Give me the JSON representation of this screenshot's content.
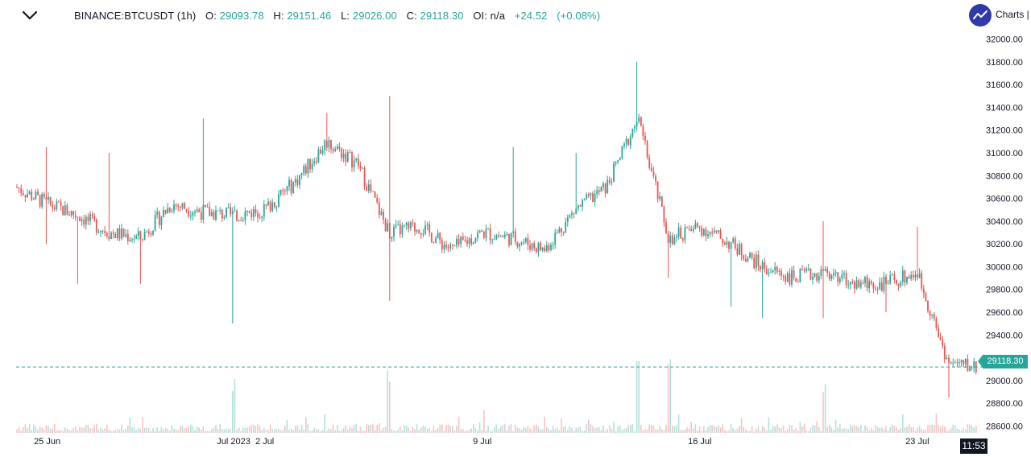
{
  "header": {
    "symbol": "BINANCE:BTCUSDT (1h)",
    "o_label": "O:",
    "o_value": "29093.78",
    "h_label": "H:",
    "h_value": "29151.46",
    "l_label": "L:",
    "l_value": "29026.00",
    "c_label": "C:",
    "c_value": "29118.30",
    "oi_label": "OI:",
    "oi_value": "n/a",
    "change": "+24.52",
    "change_pct": "(+0.08%)",
    "brand": "Charts |",
    "collapse_icon": "chevron-down-icon",
    "logo_icon": "trend-line-logo-icon"
  },
  "colors": {
    "up": "#26a69a",
    "down": "#ef5350",
    "text": "#131722",
    "badge": "#131722",
    "logo": "#2f3aa8"
  },
  "chart_data": {
    "type": "candlestick",
    "symbol": "BINANCE:BTCUSDT",
    "interval": "1h",
    "last_price": 29118.3,
    "last_price_label": "29118.30",
    "time_label": "11:53",
    "ylim": [
      28540,
      32060
    ],
    "y_ticks": [
      {
        "value": 28600,
        "label": "28600.00"
      },
      {
        "value": 28800,
        "label": "28800.00"
      },
      {
        "value": 29000,
        "label": "29000.00"
      },
      {
        "value": 29200,
        "label": "29200.00"
      },
      {
        "value": 29400,
        "label": "29400.00"
      },
      {
        "value": 29600,
        "label": "29600.00"
      },
      {
        "value": 29800,
        "label": "29800.00"
      },
      {
        "value": 30000,
        "label": "30000.00"
      },
      {
        "value": 30200,
        "label": "30200.00"
      },
      {
        "value": 30400,
        "label": "30400.00"
      },
      {
        "value": 30600,
        "label": "30600.00"
      },
      {
        "value": 30800,
        "label": "30800.00"
      },
      {
        "value": 31000,
        "label": "31000.00"
      },
      {
        "value": 31200,
        "label": "31200.00"
      },
      {
        "value": 31400,
        "label": "31400.00"
      },
      {
        "value": 31600,
        "label": "31600.00"
      },
      {
        "value": 31800,
        "label": "31800.00"
      },
      {
        "value": 32000,
        "label": "32000.00"
      }
    ],
    "x_labels": [
      "25 Jun",
      "Jul 2023",
      "2 Jul",
      "9 Jul",
      "16 Jul",
      "23 Jul"
    ],
    "x_range": [
      "2023-06-24",
      "2023-07-25"
    ],
    "x_label_dates": [
      "2023-06-25",
      "2023-07-01",
      "2023-07-02",
      "2023-07-09",
      "2023-07-16",
      "2023-07-23"
    ],
    "path": [
      {
        "date": "2023-06-24",
        "close": 30700
      },
      {
        "date": "2023-06-25",
        "close": 30550
      },
      {
        "date": "2023-06-26",
        "close": 30450
      },
      {
        "date": "2023-06-27",
        "close": 30300
      },
      {
        "date": "2023-06-28",
        "close": 30250
      },
      {
        "date": "2023-06-29",
        "close": 30550
      },
      {
        "date": "2023-06-30",
        "close": 30480
      },
      {
        "date": "2023-07-01",
        "close": 30450
      },
      {
        "date": "2023-07-02",
        "close": 30500
      },
      {
        "date": "2023-07-03",
        "close": 30750
      },
      {
        "date": "2023-07-04",
        "close": 31100
      },
      {
        "date": "2023-07-05",
        "close": 30900
      },
      {
        "date": "2023-07-06",
        "close": 30300
      },
      {
        "date": "2023-07-07",
        "close": 30350
      },
      {
        "date": "2023-07-08",
        "close": 30150
      },
      {
        "date": "2023-07-09",
        "close": 30300
      },
      {
        "date": "2023-07-10",
        "close": 30250
      },
      {
        "date": "2023-07-11",
        "close": 30150
      },
      {
        "date": "2023-07-12",
        "close": 30500
      },
      {
        "date": "2023-07-13",
        "close": 30700
      },
      {
        "date": "2023-07-14",
        "close": 31300
      },
      {
        "date": "2023-07-15",
        "close": 30250
      },
      {
        "date": "2023-07-16",
        "close": 30350
      },
      {
        "date": "2023-07-17",
        "close": 30200
      },
      {
        "date": "2023-07-18",
        "close": 30000
      },
      {
        "date": "2023-07-19",
        "close": 29900
      },
      {
        "date": "2023-07-20",
        "close": 29950
      },
      {
        "date": "2023-07-21",
        "close": 29850
      },
      {
        "date": "2023-07-22",
        "close": 29850
      },
      {
        "date": "2023-07-23",
        "close": 29950
      },
      {
        "date": "2023-07-24",
        "close": 29150
      },
      {
        "date": "2023-07-25",
        "close": 29118
      }
    ],
    "spikes": [
      {
        "date": "2023-06-25",
        "value": 30200
      },
      {
        "date": "2023-06-25",
        "value": 31050
      },
      {
        "date": "2023-06-26",
        "value": 29850
      },
      {
        "date": "2023-06-27",
        "value": 31000
      },
      {
        "date": "2023-06-28",
        "value": 29850
      },
      {
        "date": "2023-06-30",
        "value": 31300
      },
      {
        "date": "2023-07-01",
        "value": 29500
      },
      {
        "date": "2023-07-04",
        "value": 31350
      },
      {
        "date": "2023-07-06",
        "value": 31500
      },
      {
        "date": "2023-07-06",
        "value": 29700
      },
      {
        "date": "2023-07-10",
        "value": 31050
      },
      {
        "date": "2023-07-12",
        "value": 31000
      },
      {
        "date": "2023-07-14",
        "value": 31800
      },
      {
        "date": "2023-07-15",
        "value": 29900
      },
      {
        "date": "2023-07-17",
        "value": 29650
      },
      {
        "date": "2023-07-18",
        "value": 29550
      },
      {
        "date": "2023-07-20",
        "value": 30400
      },
      {
        "date": "2023-07-20",
        "value": 29550
      },
      {
        "date": "2023-07-22",
        "value": 29600
      },
      {
        "date": "2023-07-23",
        "value": 30350
      },
      {
        "date": "2023-07-24",
        "value": 28850
      }
    ],
    "volume_spikes": [
      "2023-07-01",
      "2023-07-06",
      "2023-07-14",
      "2023-07-15",
      "2023-07-20"
    ]
  }
}
